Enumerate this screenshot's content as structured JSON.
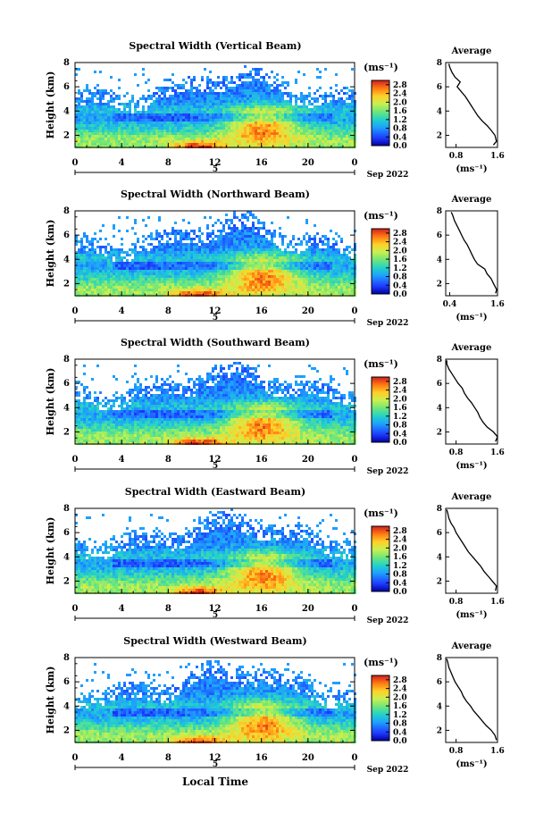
{
  "chart_data": {
    "type": "heatmap",
    "date_label": "Sep 2022",
    "date_sub": "5",
    "xlabel": "Local Time",
    "ylabel": "Height (km)",
    "colorbar_unit": "(ms⁻¹)",
    "colorbar_ticks": [
      "0.0",
      "0.4",
      "0.8",
      "1.2",
      "1.6",
      "2.0",
      "2.4",
      "2.8"
    ],
    "colorbar_range": [
      0,
      3.0
    ],
    "x_ticks": [
      "0",
      "4",
      "8",
      "12",
      "16",
      "20",
      "0"
    ],
    "xlim": [
      0,
      24
    ],
    "ylim": [
      1,
      8
    ],
    "y_ticks": [
      "2",
      "4",
      "6",
      "8"
    ],
    "average_title": "Average",
    "average_xlabel": "(ms⁻¹)",
    "panels": [
      {
        "title": "Spectral Width (Vertical Beam)",
        "avg_xlim": [
          0.6,
          1.6
        ],
        "avg_ticks": [
          "0.8",
          "1.6"
        ],
        "avg_profile": [
          [
            1.52,
            1.2
          ],
          [
            1.58,
            1.5
          ],
          [
            1.55,
            2.0
          ],
          [
            1.48,
            2.4
          ],
          [
            1.4,
            2.8
          ],
          [
            1.3,
            3.2
          ],
          [
            1.22,
            3.6
          ],
          [
            1.16,
            4.0
          ],
          [
            1.1,
            4.4
          ],
          [
            1.04,
            4.8
          ],
          [
            0.98,
            5.2
          ],
          [
            0.9,
            5.6
          ],
          [
            0.82,
            6.0
          ],
          [
            0.88,
            6.4
          ],
          [
            0.78,
            6.8
          ],
          [
            0.72,
            7.2
          ],
          [
            0.68,
            7.6
          ],
          [
            0.66,
            7.9
          ]
        ]
      },
      {
        "title": "Spectral Width (Northward Beam)",
        "avg_xlim": [
          0.3,
          1.6
        ],
        "avg_ticks": [
          "0.4",
          "1.6"
        ],
        "avg_profile": [
          [
            1.55,
            1.2
          ],
          [
            1.58,
            1.5
          ],
          [
            1.5,
            2.0
          ],
          [
            1.44,
            2.4
          ],
          [
            1.34,
            2.8
          ],
          [
            1.28,
            3.2
          ],
          [
            1.1,
            3.6
          ],
          [
            1.02,
            4.0
          ],
          [
            0.96,
            4.4
          ],
          [
            0.9,
            4.8
          ],
          [
            0.84,
            5.2
          ],
          [
            0.76,
            5.6
          ],
          [
            0.7,
            6.0
          ],
          [
            0.64,
            6.4
          ],
          [
            0.58,
            6.8
          ],
          [
            0.52,
            7.2
          ],
          [
            0.48,
            7.6
          ],
          [
            0.44,
            7.9
          ]
        ]
      },
      {
        "title": "Spectral Width (Southward Beam)",
        "avg_xlim": [
          0.6,
          1.6
        ],
        "avg_ticks": [
          "0.8",
          "1.6"
        ],
        "avg_profile": [
          [
            1.56,
            1.2
          ],
          [
            1.6,
            1.6
          ],
          [
            1.52,
            2.0
          ],
          [
            1.4,
            2.4
          ],
          [
            1.32,
            2.8
          ],
          [
            1.26,
            3.2
          ],
          [
            1.22,
            3.6
          ],
          [
            1.16,
            4.0
          ],
          [
            1.1,
            4.4
          ],
          [
            1.02,
            4.8
          ],
          [
            0.96,
            5.2
          ],
          [
            0.92,
            5.6
          ],
          [
            0.84,
            6.0
          ],
          [
            0.78,
            6.4
          ],
          [
            0.72,
            6.8
          ],
          [
            0.66,
            7.2
          ],
          [
            0.62,
            7.6
          ],
          [
            0.62,
            7.9
          ]
        ]
      },
      {
        "title": "Spectral Width (Eastward Beam)",
        "avg_xlim": [
          0.6,
          1.6
        ],
        "avg_ticks": [
          "0.8",
          "1.6"
        ],
        "avg_profile": [
          [
            1.56,
            1.2
          ],
          [
            1.58,
            1.6
          ],
          [
            1.5,
            2.0
          ],
          [
            1.42,
            2.4
          ],
          [
            1.34,
            2.8
          ],
          [
            1.28,
            3.2
          ],
          [
            1.2,
            3.6
          ],
          [
            1.12,
            4.0
          ],
          [
            1.04,
            4.4
          ],
          [
            0.98,
            4.8
          ],
          [
            0.92,
            5.2
          ],
          [
            0.86,
            5.6
          ],
          [
            0.8,
            6.0
          ],
          [
            0.76,
            6.4
          ],
          [
            0.7,
            6.8
          ],
          [
            0.66,
            7.2
          ],
          [
            0.64,
            7.6
          ],
          [
            0.62,
            7.9
          ]
        ]
      },
      {
        "title": "Spectral Width (Westward Beam)",
        "avg_xlim": [
          0.6,
          1.6
        ],
        "avg_ticks": [
          "0.8",
          "1.6"
        ],
        "avg_profile": [
          [
            1.58,
            1.2
          ],
          [
            1.55,
            1.6
          ],
          [
            1.48,
            2.0
          ],
          [
            1.38,
            2.4
          ],
          [
            1.3,
            2.8
          ],
          [
            1.22,
            3.2
          ],
          [
            1.14,
            3.6
          ],
          [
            1.08,
            4.0
          ],
          [
            1.0,
            4.4
          ],
          [
            0.94,
            4.8
          ],
          [
            0.9,
            5.2
          ],
          [
            0.84,
            5.6
          ],
          [
            0.78,
            6.0
          ],
          [
            0.74,
            6.4
          ],
          [
            0.7,
            6.8
          ],
          [
            0.66,
            7.2
          ],
          [
            0.64,
            7.6
          ],
          [
            0.62,
            7.9
          ]
        ]
      }
    ]
  }
}
